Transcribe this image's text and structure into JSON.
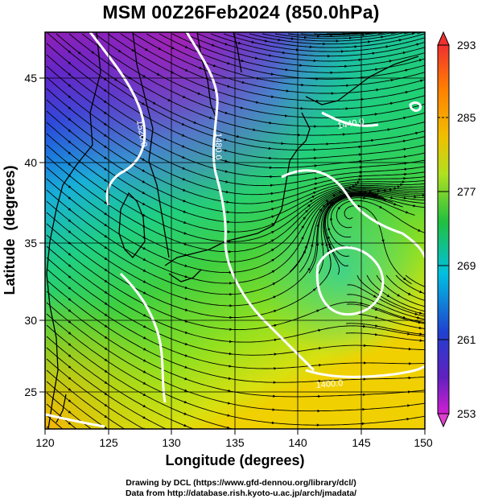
{
  "title": "MSM 00Z26Feb2024 (850.0hPa)",
  "axes": {
    "xlabel": "Longitude (degrees)",
    "ylabel": "Latitude  (degrees)",
    "x_ticks": [
      "120",
      "125",
      "130",
      "135",
      "140",
      "145",
      "150"
    ],
    "y_ticks": [
      "25",
      "30",
      "35",
      "40",
      "45"
    ]
  },
  "colorbar": {
    "ticks": [
      "293",
      "285",
      "277",
      "269",
      "261",
      "253"
    ],
    "range": [
      253,
      293
    ],
    "colors": [
      "#c000c0",
      "#2030d0",
      "#00b0e0",
      "#20d080",
      "#80e020",
      "#e0e000",
      "#ff8000",
      "#f03030"
    ]
  },
  "contours": {
    "variable": "geopotential height",
    "labels": [
      "1520.0",
      "1480.0",
      "1440.0",
      "1400.0"
    ]
  },
  "credits": {
    "line1": "Drawing by DCL (https://www.gfd-dennou.org/library/dcl/)",
    "line2": "Data from http://database.rish.kyoto-u.ac.jp/arch/jmadata/"
  },
  "map": {
    "lon_range": [
      120,
      150
    ],
    "lat_range": [
      22.5,
      48
    ],
    "low_center": {
      "lon": 143.5,
      "lat": 32.5
    }
  }
}
